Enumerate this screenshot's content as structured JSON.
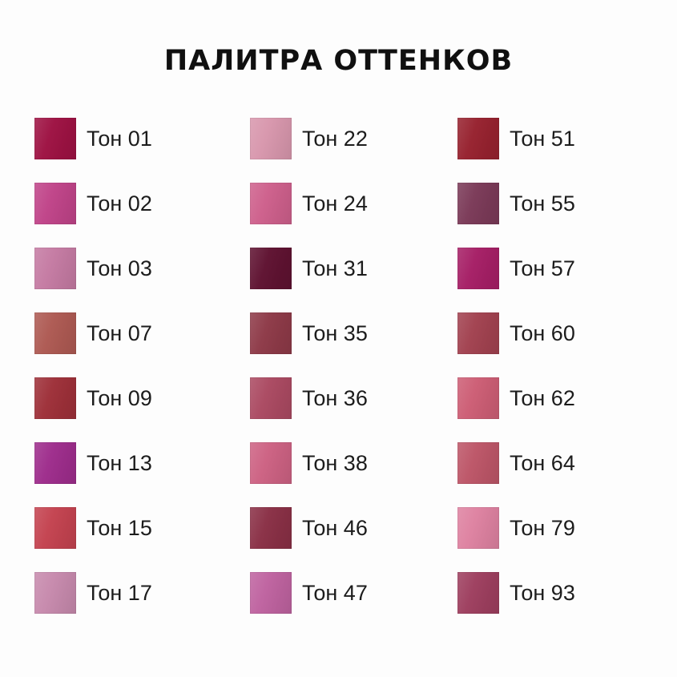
{
  "page": {
    "background": "#fdfdfd",
    "title": "ПАЛИТРА ОТТЕНКОВ",
    "title_color": "#101010",
    "label_color": "#1c1c1c"
  },
  "palette": {
    "columns": 3,
    "rows": 8,
    "order": "column-major",
    "swatches": [
      {
        "label": "Тон 01",
        "color": "#9e1243"
      },
      {
        "label": "Тон 02",
        "color": "#c04489"
      },
      {
        "label": "Тон 03",
        "color": "#c57ba3"
      },
      {
        "label": "Тон 07",
        "color": "#ae5a53"
      },
      {
        "label": "Тон 09",
        "color": "#9e3039"
      },
      {
        "label": "Тон 13",
        "color": "#9e2d8c"
      },
      {
        "label": "Тон 15",
        "color": "#c44350"
      },
      {
        "label": "Тон 17",
        "color": "#c78aad"
      },
      {
        "label": "Тон 22",
        "color": "#d897ad"
      },
      {
        "label": "Тон 24",
        "color": "#ce608c"
      },
      {
        "label": "Тон 31",
        "color": "#5f1231"
      },
      {
        "label": "Тон 35",
        "color": "#8e3a48"
      },
      {
        "label": "Тон 36",
        "color": "#ab4a62"
      },
      {
        "label": "Тон 38",
        "color": "#cd6283"
      },
      {
        "label": "Тон 46",
        "color": "#8a3046"
      },
      {
        "label": "Тон 47",
        "color": "#bf63a0"
      },
      {
        "label": "Тон 51",
        "color": "#97222f"
      },
      {
        "label": "Тон 55",
        "color": "#7b3a58"
      },
      {
        "label": "Тон 57",
        "color": "#a61f66"
      },
      {
        "label": "Тон 60",
        "color": "#a24250"
      },
      {
        "label": "Тон 62",
        "color": "#cd5e75"
      },
      {
        "label": "Тон 64",
        "color": "#bd5668"
      },
      {
        "label": "Тон 79",
        "color": "#de82a1"
      },
      {
        "label": "Тон 93",
        "color": "#9e3f5f"
      }
    ]
  }
}
